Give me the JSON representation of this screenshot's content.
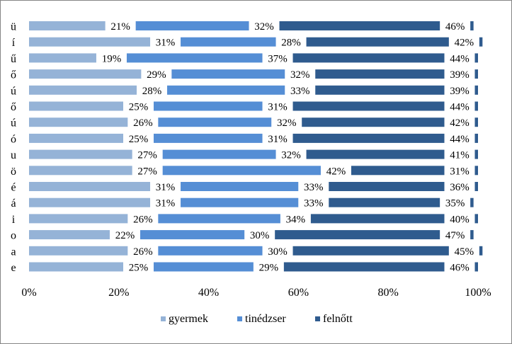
{
  "chart_data": {
    "type": "bar",
    "orientation": "horizontal",
    "stacked": "percent",
    "categories": [
      "e",
      "a",
      "o",
      "i",
      "á",
      "é",
      "ö",
      "u",
      "ó",
      "ú",
      "ő",
      "ú",
      "ő",
      "ű",
      "í",
      "ü"
    ],
    "series": [
      {
        "name": "gyermek",
        "color": "#95B3D7",
        "values": [
          25,
          26,
          22,
          26,
          31,
          31,
          27,
          27,
          25,
          26,
          25,
          28,
          29,
          19,
          31,
          21
        ]
      },
      {
        "name": "tinédzser",
        "color": "#558ED5",
        "values": [
          29,
          30,
          30,
          34,
          33,
          33,
          42,
          32,
          31,
          32,
          31,
          33,
          32,
          37,
          28,
          32
        ]
      },
      {
        "name": "felnőtt",
        "color": "#2F5B8E",
        "values": [
          46,
          45,
          47,
          40,
          35,
          36,
          31,
          41,
          44,
          42,
          44,
          39,
          39,
          44,
          42,
          46
        ]
      }
    ],
    "value_suffix": "%",
    "xlim": [
      0,
      100
    ],
    "xticks": [
      "0%",
      "20%",
      "40%",
      "60%",
      "80%",
      "100%"
    ],
    "grid": false,
    "legend_position": "bottom"
  }
}
